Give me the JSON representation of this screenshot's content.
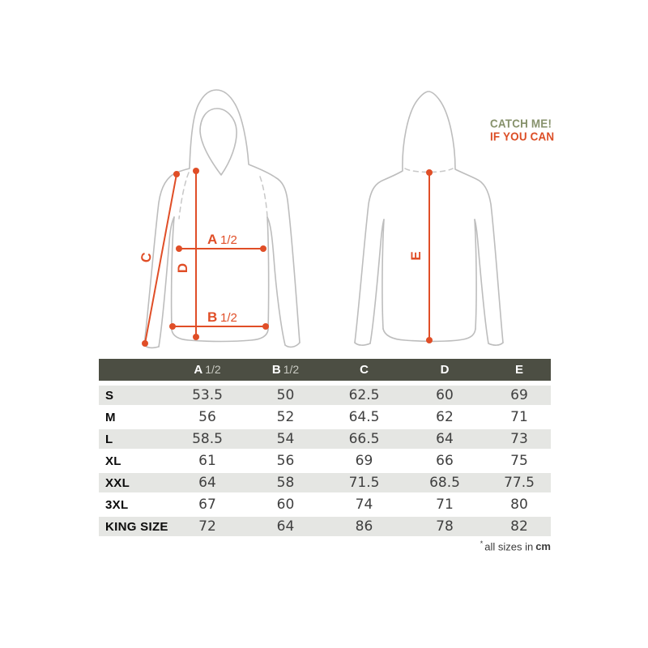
{
  "branding": {
    "line1": "CATCH ME!",
    "line2": "IF YOU CAN",
    "green": "#87926c",
    "orange": "#dc4e26"
  },
  "diagram": {
    "accent_color": "#e04e27",
    "outline_color": "#bdbdbd",
    "front": {
      "measure_a": {
        "letter": "A",
        "fraction": "1/2"
      },
      "measure_b": {
        "letter": "B",
        "fraction": "1/2"
      },
      "measure_c": "C",
      "measure_d": "D"
    },
    "back": {
      "measure_e": "E"
    }
  },
  "table": {
    "header_bg": "#4c4e43",
    "row_alt_bg": "#e5e6e3",
    "columns": [
      {
        "letter": "A",
        "fraction": "1/2"
      },
      {
        "letter": "B",
        "fraction": "1/2"
      },
      {
        "letter": "C",
        "fraction": ""
      },
      {
        "letter": "D",
        "fraction": ""
      },
      {
        "letter": "E",
        "fraction": ""
      }
    ],
    "rows": [
      {
        "size": "S",
        "values": [
          "53.5",
          "50",
          "62.5",
          "60",
          "69"
        ]
      },
      {
        "size": "M",
        "values": [
          "56",
          "52",
          "64.5",
          "62",
          "71"
        ]
      },
      {
        "size": "L",
        "values": [
          "58.5",
          "54",
          "66.5",
          "64",
          "73"
        ]
      },
      {
        "size": "XL",
        "values": [
          "61",
          "56",
          "69",
          "66",
          "75"
        ]
      },
      {
        "size": "XXL",
        "values": [
          "64",
          "58",
          "71.5",
          "68.5",
          "77.5"
        ]
      },
      {
        "size": "3XL",
        "values": [
          "67",
          "60",
          "74",
          "71",
          "80"
        ]
      },
      {
        "size": "KING SIZE",
        "values": [
          "72",
          "64",
          "86",
          "78",
          "82"
        ]
      }
    ]
  },
  "footnote": {
    "marker": "*",
    "text": "all sizes in",
    "unit": "cm"
  }
}
